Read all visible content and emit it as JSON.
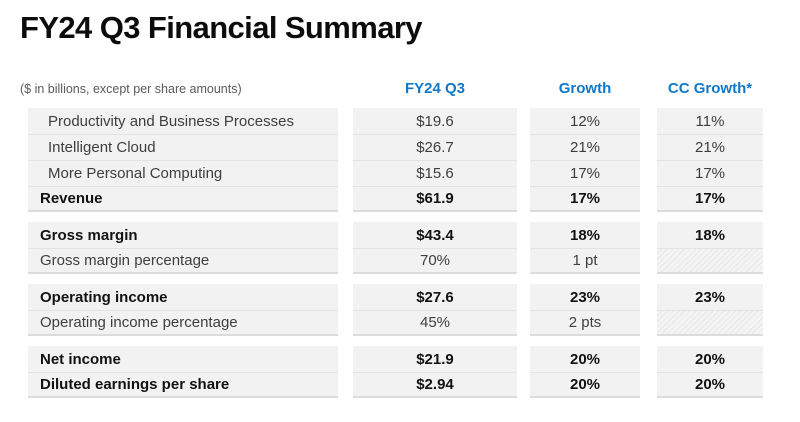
{
  "title": "FY24 Q3 Financial Summary",
  "accent_color": "#0f78c8",
  "row_background": "#f2f2f2",
  "table": {
    "note": "($ in billions, except per share amounts)",
    "columns": [
      "FY24 Q3",
      "Growth",
      "CC Growth*"
    ],
    "groups": [
      {
        "rows": [
          {
            "label": "Productivity and Business Processes",
            "value": "$19.6",
            "growth": "12%",
            "cc": "11%"
          },
          {
            "label": "Intelligent Cloud",
            "value": "$26.7",
            "growth": "21%",
            "cc": "21%"
          },
          {
            "label": "More Personal Computing",
            "value": "$15.6",
            "growth": "17%",
            "cc": "17%"
          },
          {
            "label": "Revenue",
            "value": "$61.9",
            "growth": "17%",
            "cc": "17%"
          }
        ]
      },
      {
        "rows": [
          {
            "label": "Gross margin",
            "value": "$43.4",
            "growth": "18%",
            "cc": "18%"
          },
          {
            "label": "Gross margin percentage",
            "value": "70%",
            "growth": "1 pt",
            "cc": ""
          }
        ]
      },
      {
        "rows": [
          {
            "label": "Operating income",
            "value": "$27.6",
            "growth": "23%",
            "cc": "23%"
          },
          {
            "label": "Operating income percentage",
            "value": "45%",
            "growth": "2 pts",
            "cc": ""
          }
        ]
      },
      {
        "rows": [
          {
            "label": "Net income",
            "value": "$21.9",
            "growth": "20%",
            "cc": "20%"
          },
          {
            "label": "Diluted earnings per share",
            "value": "$2.94",
            "growth": "20%",
            "cc": "20%"
          }
        ]
      }
    ]
  }
}
